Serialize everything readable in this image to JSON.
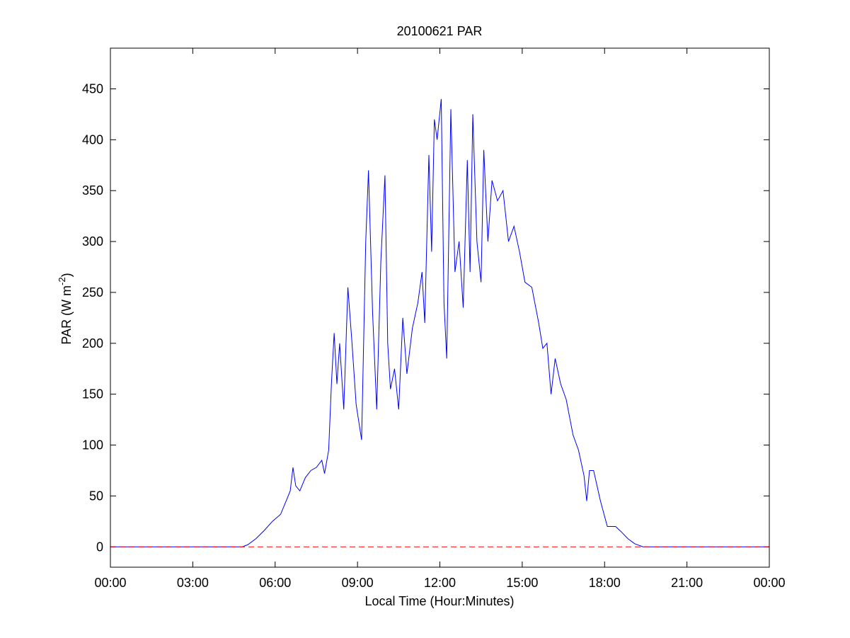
{
  "chart_data": {
    "type": "line",
    "title": "20100621 PAR",
    "xlabel": "Local Time (Hour:Minutes)",
    "ylabel": {
      "text": "PAR (W m",
      "superscript": "-2",
      "suffix": ")"
    },
    "color": "#0000ff",
    "x": [
      0,
      4.8,
      5.0,
      5.3,
      5.6,
      5.9,
      6.2,
      6.4,
      6.55,
      6.65,
      6.75,
      6.9,
      7.1,
      7.3,
      7.5,
      7.7,
      7.8,
      7.95,
      8.05,
      8.15,
      8.25,
      8.35,
      8.5,
      8.65,
      8.8,
      8.95,
      9.15,
      9.3,
      9.4,
      9.55,
      9.7,
      9.85,
      10.0,
      10.1,
      10.2,
      10.35,
      10.5,
      10.65,
      10.8,
      11.0,
      11.2,
      11.35,
      11.45,
      11.6,
      11.7,
      11.8,
      11.9,
      12.05,
      12.15,
      12.25,
      12.4,
      12.55,
      12.7,
      12.85,
      13.0,
      13.1,
      13.2,
      13.35,
      13.5,
      13.6,
      13.75,
      13.9,
      14.1,
      14.3,
      14.5,
      14.7,
      14.9,
      15.1,
      15.35,
      15.6,
      15.75,
      15.9,
      16.05,
      16.2,
      16.4,
      16.6,
      16.85,
      17.05,
      17.25,
      17.35,
      17.45,
      17.6,
      17.85,
      18.1,
      18.4,
      18.6,
      18.85,
      19.1,
      19.4,
      24
    ],
    "values": [
      0,
      0,
      2,
      8,
      16,
      25,
      32,
      45,
      55,
      78,
      60,
      55,
      68,
      75,
      78,
      85,
      72,
      95,
      160,
      210,
      160,
      200,
      135,
      255,
      200,
      140,
      105,
      300,
      370,
      230,
      135,
      280,
      365,
      200,
      155,
      175,
      135,
      225,
      170,
      215,
      240,
      270,
      220,
      385,
      290,
      420,
      400,
      440,
      240,
      185,
      430,
      270,
      300,
      235,
      380,
      270,
      425,
      300,
      260,
      390,
      300,
      360,
      340,
      350,
      300,
      315,
      290,
      260,
      255,
      220,
      195,
      200,
      150,
      185,
      160,
      145,
      110,
      95,
      70,
      45,
      75,
      75,
      45,
      20,
      20,
      15,
      8,
      3,
      0,
      0
    ],
    "hline": {
      "value": 0,
      "color": "#ff0000",
      "dashed": true
    },
    "xlim": [
      0,
      24
    ],
    "xticks": [
      {
        "value": 0,
        "label": "00:00"
      },
      {
        "value": 3,
        "label": "03:00"
      },
      {
        "value": 6,
        "label": "06:00"
      },
      {
        "value": 9,
        "label": "09:00"
      },
      {
        "value": 12,
        "label": "12:00"
      },
      {
        "value": 15,
        "label": "15:00"
      },
      {
        "value": 18,
        "label": "18:00"
      },
      {
        "value": 21,
        "label": "21:00"
      },
      {
        "value": 24,
        "label": "00:00"
      }
    ],
    "ylim": [
      -20,
      490
    ],
    "yticks": [
      0,
      50,
      100,
      150,
      200,
      250,
      300,
      350,
      400,
      450
    ],
    "grid": false
  }
}
